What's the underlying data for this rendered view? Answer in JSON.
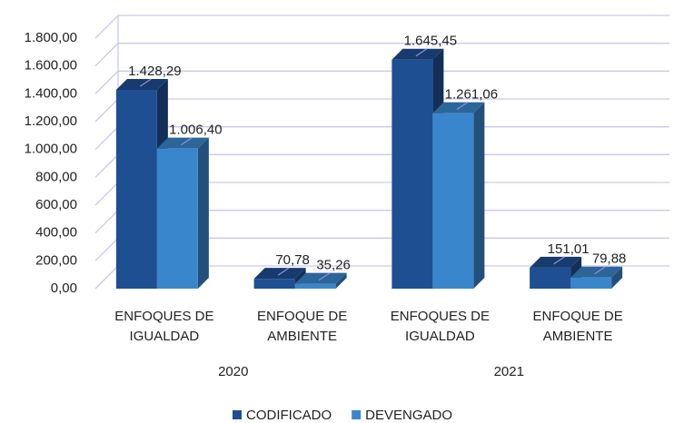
{
  "chart_data": {
    "type": "bar3d",
    "categories": [
      "ENFOQUES DE IGUALDAD",
      "ENFOQUE DE AMBIENTE",
      "ENFOQUES DE IGUALDAD",
      "ENFOQUE DE AMBIENTE"
    ],
    "groups": [
      "2020",
      "2021"
    ],
    "series": [
      {
        "name": "CODIFICADO",
        "color": "#1f4f93",
        "values": [
          1428.29,
          70.78,
          1645.45,
          151.01
        ],
        "value_labels": [
          "1.428,29",
          "70,78",
          "1.645,45",
          "151,01"
        ]
      },
      {
        "name": "DEVENGADO",
        "color": "#3a86cc",
        "values": [
          1006.4,
          35.26,
          1261.06,
          79.88
        ],
        "value_labels": [
          "1.006,40",
          "35,26",
          "1.261,06",
          "79,88"
        ]
      }
    ],
    "ylim": [
      0,
      1800
    ],
    "yticks": [
      {
        "value": 0,
        "label": "0,00"
      },
      {
        "value": 200,
        "label": "200,00"
      },
      {
        "value": 400,
        "label": "400,00"
      },
      {
        "value": 600,
        "label": "600,00"
      },
      {
        "value": 800,
        "label": "800,00"
      },
      {
        "value": 1000,
        "label": "1.000,00"
      },
      {
        "value": 1200,
        "label": "1.200,00"
      },
      {
        "value": 1400,
        "label": "1.400,00"
      },
      {
        "value": 1600,
        "label": "1.600,00"
      },
      {
        "value": 1800,
        "label": "1.800,00"
      }
    ],
    "grid": true,
    "legend": "bottom"
  }
}
